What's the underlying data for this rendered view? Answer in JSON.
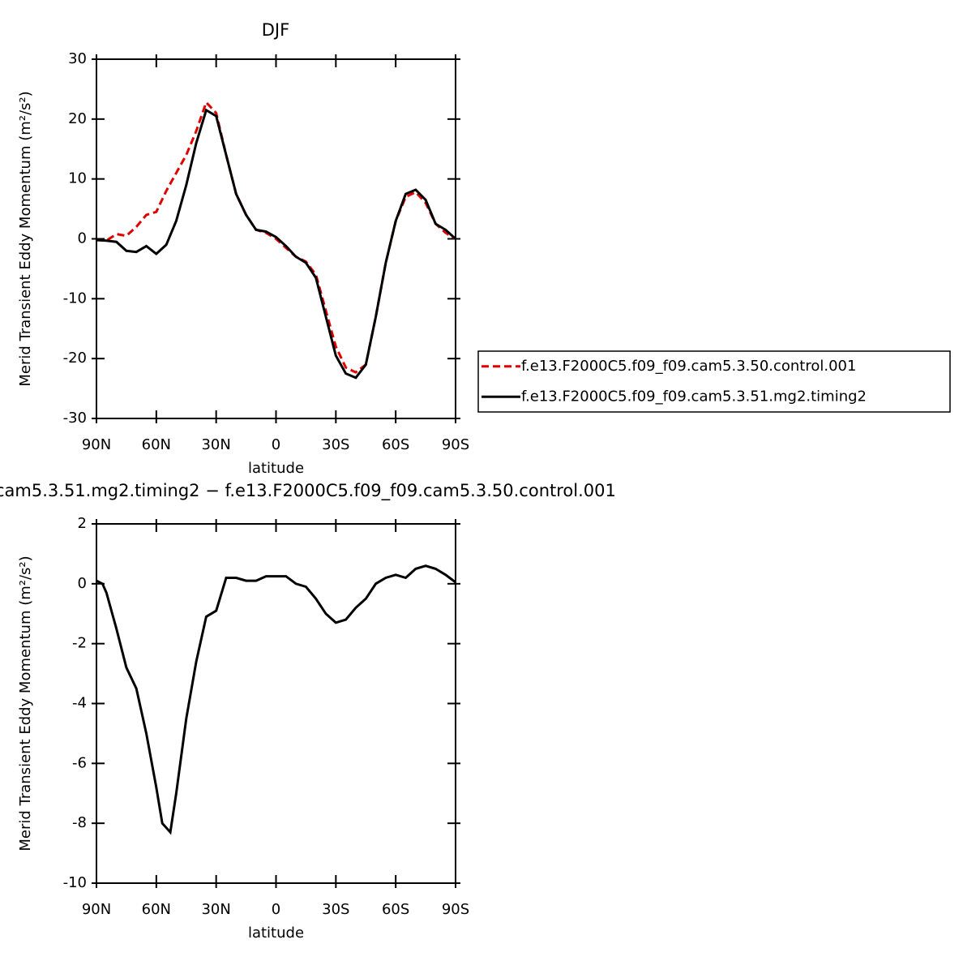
{
  "chart_data": [
    {
      "type": "line",
      "title": "DJF",
      "ylabel": "Merid Transient Eddy Momentum (m²/s²)",
      "xlabel": "latitude",
      "x": [
        90,
        85,
        80,
        75,
        70,
        65,
        60,
        55,
        50,
        45,
        40,
        35,
        30,
        25,
        20,
        15,
        10,
        5,
        0,
        -5,
        -10,
        -15,
        -20,
        -25,
        -30,
        -35,
        -40,
        -45,
        -50,
        -55,
        -60,
        -65,
        -70,
        -75,
        -80,
        -85,
        -90
      ],
      "series": [
        {
          "name": "f.e13.F2000C5.f09_f09.cam5.3.50.control.001",
          "color": "#e00000",
          "dash": true,
          "values": [
            -0.2,
            -0.3,
            0.8,
            0.5,
            2,
            4,
            4.5,
            8,
            11,
            14,
            18,
            22.8,
            21,
            14,
            7.5,
            4,
            1.5,
            1,
            0,
            -1.5,
            -3,
            -3.8,
            -6,
            -12,
            -18,
            -21.5,
            -22.3,
            -21,
            -13,
            -4,
            3,
            7,
            7.8,
            6,
            2.5,
            1,
            0
          ]
        },
        {
          "name": "f.e13.F2000C5.f09_f09.cam5.3.51.mg2.timing2",
          "color": "#000000",
          "dash": false,
          "values": [
            -0.2,
            -0.3,
            -0.5,
            -2,
            -2.2,
            -1.2,
            -2.5,
            -1,
            3,
            9,
            16,
            21.5,
            20.5,
            14,
            7.5,
            4,
            1.5,
            1.2,
            0.3,
            -1.2,
            -3,
            -4,
            -6.5,
            -13,
            -19.5,
            -22.5,
            -23.2,
            -21,
            -13,
            -4,
            3,
            7.5,
            8.2,
            6.5,
            2.5,
            1.5,
            0
          ]
        }
      ],
      "xlim": [
        90,
        -90
      ],
      "ylim": [
        -30,
        30
      ],
      "xticks": [
        {
          "value": 90,
          "label": "90N"
        },
        {
          "value": 60,
          "label": "60N"
        },
        {
          "value": 30,
          "label": "30N"
        },
        0,
        {
          "value": -30,
          "label": "30S"
        },
        {
          "value": -60,
          "label": "60S"
        },
        {
          "value": -90,
          "label": "90S"
        }
      ],
      "yticks": [
        -30,
        -20,
        -10,
        0,
        10,
        20,
        30
      ],
      "legend": "right"
    },
    {
      "type": "line",
      "title": "cam5.3.51.mg2.timing2 − f.e13.F2000C5.f09_f09.cam5.3.50.control.001",
      "ylabel": "Merid Transient Eddy Momentum (m²/s²)",
      "xlabel": "latitude",
      "x": [
        90,
        87,
        85,
        80,
        75,
        70,
        65,
        60,
        57,
        53,
        50,
        45,
        40,
        35,
        30,
        25,
        20,
        15,
        10,
        5,
        0,
        -5,
        -10,
        -15,
        -20,
        -25,
        -30,
        -35,
        -40,
        -45,
        -50,
        -55,
        -60,
        -65,
        -70,
        -75,
        -80,
        -85,
        -90
      ],
      "series": [
        {
          "color": "#000000",
          "dash": false,
          "values": [
            0.1,
            0,
            -0.3,
            -1.5,
            -2.8,
            -3.5,
            -5,
            -6.8,
            -8,
            -8.3,
            -7,
            -4.5,
            -2.6,
            -1.1,
            -0.9,
            0.2,
            0.2,
            0.1,
            0.1,
            0.25,
            0.25,
            0.25,
            0,
            -0.1,
            -0.5,
            -1,
            -1.3,
            -1.2,
            -0.8,
            -0.5,
            0,
            0.2,
            0.3,
            0.2,
            0.5,
            0.6,
            0.5,
            0.3,
            0.05
          ]
        }
      ],
      "xlim": [
        90,
        -90
      ],
      "ylim": [
        -10,
        2
      ],
      "xticks": [
        {
          "value": 90,
          "label": "90N"
        },
        {
          "value": 60,
          "label": "60N"
        },
        {
          "value": 30,
          "label": "30N"
        },
        0,
        {
          "value": -30,
          "label": "30S"
        },
        {
          "value": -60,
          "label": "60S"
        },
        {
          "value": -90,
          "label": "90S"
        }
      ],
      "yticks": [
        -10,
        -8,
        -6,
        -4,
        -2,
        0,
        2
      ]
    }
  ]
}
